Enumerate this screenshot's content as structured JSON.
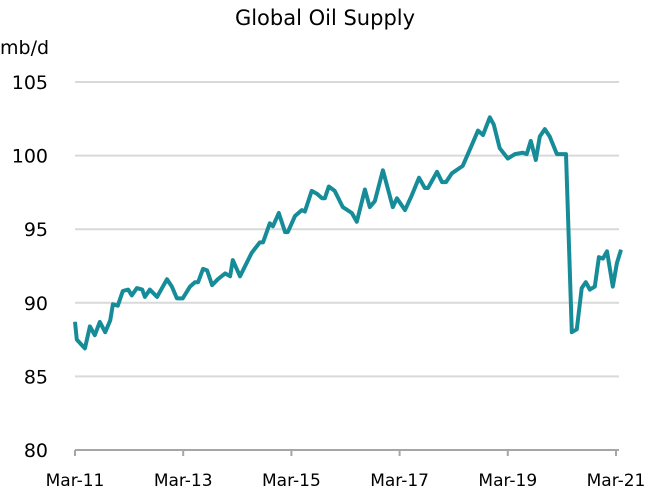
{
  "chart_data": {
    "type": "line",
    "title": "Global Oil Supply",
    "ylabel": "mb/d",
    "xlabel": "",
    "x_unit": "months since Mar-11",
    "ylim": [
      80,
      105
    ],
    "xlim": [
      0,
      121
    ],
    "yticks": [
      80,
      85,
      90,
      95,
      100,
      105
    ],
    "ytick_labels": [
      "80",
      "85",
      "90",
      "95",
      "100",
      "105"
    ],
    "xticks": [
      0,
      24,
      48,
      72,
      96,
      120
    ],
    "xtick_labels": [
      "Mar-11",
      "Mar-13",
      "Mar-15",
      "Mar-17",
      "Mar-19",
      "Mar-21"
    ],
    "grid": "horizontal",
    "legend": "none",
    "line_color": "#178c99",
    "series": [
      {
        "name": "Global Oil Supply",
        "x": [
          0,
          0.4,
          2.2,
          3.3,
          4.4,
          5.5,
          6.7,
          7.8,
          8.4,
          9.5,
          10.6,
          11.8,
          12.6,
          13.7,
          14.9,
          15.5,
          16.6,
          18.2,
          20.4,
          21.5,
          22.6,
          23.9,
          25.5,
          26.6,
          27.3,
          28.4,
          29.3,
          30.4,
          31.7,
          33.3,
          34.4,
          35.0,
          36.6,
          39.2,
          41.0,
          41.7,
          43.2,
          43.9,
          45.2,
          46.6,
          47.2,
          48.8,
          50.3,
          51.0,
          52.5,
          53.7,
          54.8,
          55.4,
          56.3,
          57.6,
          59.4,
          61.4,
          62.5,
          64.3,
          65.4,
          66.5,
          68.3,
          70.5,
          71.4,
          73.2,
          74.7,
          76.3,
          77.6,
          78.3,
          80.3,
          81.4,
          82.3,
          83.6,
          86.0,
          88.0,
          89.4,
          90.5,
          92.0,
          92.9,
          94.2,
          96.0,
          97.6,
          99.3,
          100.2,
          101.1,
          102.2,
          103.1,
          104.2,
          105.3,
          106.9,
          108.9,
          110.2,
          111.3,
          112.4,
          113.3,
          114.2,
          115.3,
          116.2,
          117.1,
          118.0,
          119.3,
          120.2,
          121.1
        ],
        "values": [
          88.7,
          87.5,
          86.9,
          88.4,
          87.8,
          88.7,
          88.0,
          88.8,
          89.9,
          89.8,
          90.8,
          90.9,
          90.5,
          91.0,
          90.9,
          90.4,
          90.9,
          90.4,
          91.6,
          91.1,
          90.3,
          90.3,
          91.1,
          91.4,
          91.4,
          92.3,
          92.2,
          91.2,
          91.6,
          92.0,
          91.8,
          92.9,
          91.8,
          93.4,
          94.1,
          94.1,
          95.4,
          95.2,
          96.1,
          94.8,
          94.8,
          95.9,
          96.3,
          96.2,
          97.6,
          97.4,
          97.1,
          97.1,
          97.9,
          97.6,
          96.5,
          96.1,
          95.5,
          97.7,
          96.5,
          96.9,
          99.0,
          96.5,
          97.1,
          96.3,
          97.3,
          98.5,
          97.8,
          97.8,
          98.9,
          98.2,
          98.2,
          98.8,
          99.3,
          100.7,
          101.7,
          101.4,
          102.6,
          102.1,
          100.5,
          99.8,
          100.1,
          100.2,
          100.1,
          101.0,
          99.7,
          101.3,
          101.8,
          101.3,
          100.1,
          100.1,
          88.0,
          88.2,
          91.0,
          91.4,
          90.9,
          91.1,
          93.1,
          93.0,
          93.5,
          91.1,
          92.7,
          93.6
        ]
      }
    ]
  }
}
